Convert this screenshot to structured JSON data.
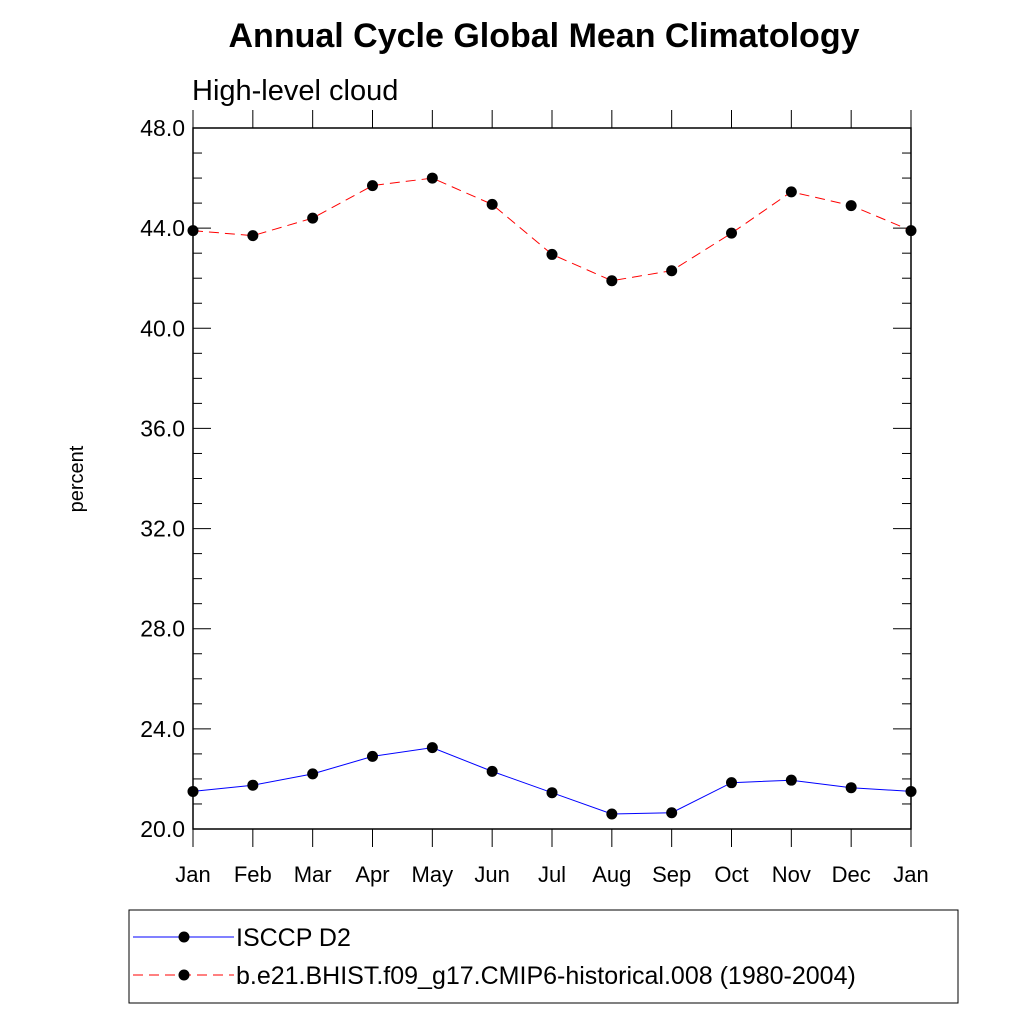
{
  "chart_data": {
    "type": "line",
    "title": "Annual Cycle Global Mean Climatology",
    "subtitle": "High-level cloud",
    "xlabel": "",
    "ylabel": "percent",
    "categories": [
      "Jan",
      "Feb",
      "Mar",
      "Apr",
      "May",
      "Jun",
      "Jul",
      "Aug",
      "Sep",
      "Oct",
      "Nov",
      "Dec",
      "Jan"
    ],
    "ylim": [
      20.0,
      48.0
    ],
    "yticks": [
      "20.0",
      "24.0",
      "28.0",
      "32.0",
      "36.0",
      "40.0",
      "44.0",
      "48.0"
    ],
    "series": [
      {
        "name": "ISCCP D2",
        "color": "#0000ff",
        "line_style": "solid",
        "marker": "circle",
        "values": [
          21.5,
          21.75,
          22.2,
          22.9,
          23.25,
          22.3,
          21.45,
          20.6,
          20.65,
          21.85,
          21.95,
          21.65,
          21.5
        ]
      },
      {
        "name": "b.e21.BHIST.f09_g17.CMIP6-historical.008 (1980-2004)",
        "color": "#ff0000",
        "line_style": "dashed",
        "marker": "circle",
        "values": [
          43.9,
          43.7,
          44.4,
          45.7,
          46.0,
          44.95,
          42.95,
          41.9,
          42.3,
          43.8,
          45.45,
          44.9,
          43.9
        ]
      }
    ],
    "legend_position": "bottom",
    "grid": false
  }
}
